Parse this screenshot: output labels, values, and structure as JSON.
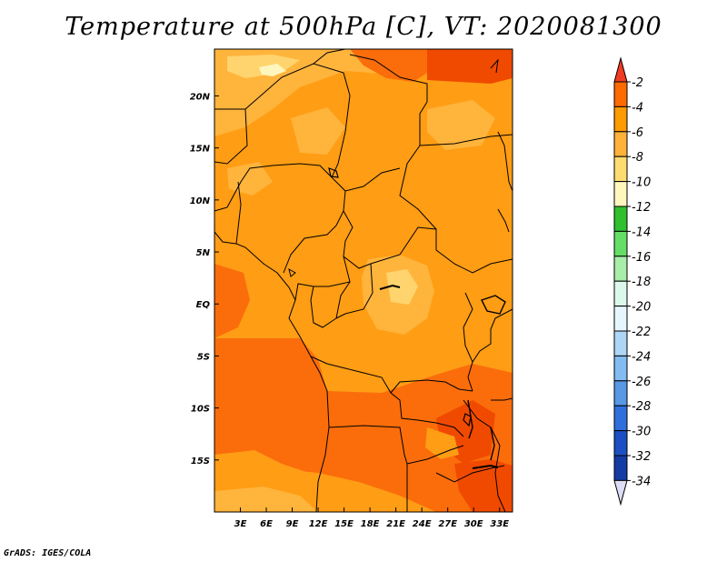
{
  "title": "Temperature at 500hPa [C], VT: 2020081300",
  "credit": "GrADS: IGES/COLA",
  "map": {
    "lat_range": [
      -20,
      24.5
    ],
    "lon_range": [
      0,
      34.5
    ],
    "lat_labels": [
      {
        "lat": 20,
        "text": "20N"
      },
      {
        "lat": 15,
        "text": "15N"
      },
      {
        "lat": 10,
        "text": "10N"
      },
      {
        "lat": 5,
        "text": "5N"
      },
      {
        "lat": 0,
        "text": "EQ"
      },
      {
        "lat": -5,
        "text": "5S"
      },
      {
        "lat": -10,
        "text": "10S"
      },
      {
        "lat": -15,
        "text": "15S"
      }
    ],
    "lon_labels": [
      {
        "lon": 3,
        "text": "3E"
      },
      {
        "lon": 6,
        "text": "6E"
      },
      {
        "lon": 9,
        "text": "9E"
      },
      {
        "lon": 12,
        "text": "12E"
      },
      {
        "lon": 15,
        "text": "15E"
      },
      {
        "lon": 18,
        "text": "18E"
      },
      {
        "lon": 21,
        "text": "21E"
      },
      {
        "lon": 24,
        "text": "24E"
      },
      {
        "lon": 27,
        "text": "27E"
      },
      {
        "lon": 30,
        "text": "30E"
      },
      {
        "lon": 33,
        "text": "33E"
      }
    ]
  },
  "colorbar": {
    "labels": [
      "-2",
      "-4",
      "-6",
      "-8",
      "-10",
      "-12",
      "-14",
      "-16",
      "-18",
      "-20",
      "-22",
      "-24",
      "-26",
      "-28",
      "-30",
      "-32",
      "-34"
    ],
    "colors": [
      "#ff3d00",
      "#ff6a00",
      "#ff9a00",
      "#ffb23a",
      "#ffdc70",
      "#fff6be",
      "#2fc02f",
      "#66dd66",
      "#a8eda8",
      "#dcf8ea",
      "#e6f6ff",
      "#aed6f6",
      "#82bcf0",
      "#5898e4",
      "#2f6fdc",
      "#1c4fc4",
      "#143aa4",
      "#0c1e86"
    ],
    "top_color": "#f03c22",
    "bottom_color": "#dcdcf6"
  },
  "legend_colors": {
    "warmest": "#f04a00",
    "warm": "#fb6d0b",
    "mid": "#ff9d14",
    "cool": "#ffb43c",
    "coolest": "#ffd46e"
  }
}
